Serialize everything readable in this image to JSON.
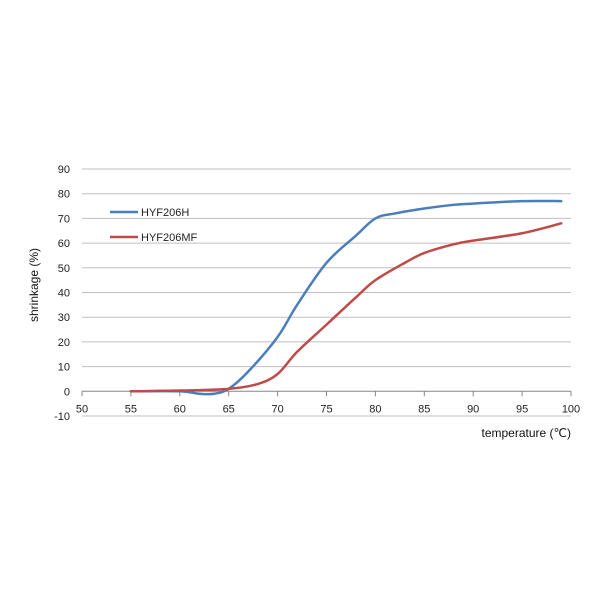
{
  "chart_data": {
    "type": "line",
    "xlabel": "temperature (℃)",
    "ylabel": "shrinkage (%)",
    "xlim": [
      50,
      100
    ],
    "ylim": [
      -10,
      90
    ],
    "x_ticks": [
      "50",
      "55",
      "60",
      "65",
      "70",
      "75",
      "80",
      "85",
      "90",
      "95",
      "100"
    ],
    "y_ticks": [
      "-10",
      "0",
      "10",
      "20",
      "30",
      "40",
      "50",
      "60",
      "70",
      "80",
      "90"
    ],
    "grid": "horizontal",
    "legend_position": "upper-left",
    "series": [
      {
        "name": "HYF206H",
        "color": "#4A7EBB",
        "x": [
          55,
          60,
          62,
          63.5,
          65,
          67,
          70,
          72,
          75,
          78,
          80,
          82,
          85,
          88,
          90,
          95,
          99
        ],
        "y": [
          0,
          0,
          -1,
          -1,
          1,
          8,
          22,
          35,
          52,
          63,
          70,
          72,
          74,
          75.5,
          76,
          77,
          77
        ]
      },
      {
        "name": "HYF206MF",
        "color": "#BE4B48",
        "x": [
          55,
          60,
          65,
          68,
          70,
          72,
          75,
          78,
          80,
          83,
          85,
          88,
          90,
          95,
          99
        ],
        "y": [
          0,
          0.3,
          1,
          3,
          7,
          16,
          27,
          38,
          45,
          52,
          56,
          59.5,
          61,
          64,
          68
        ]
      }
    ]
  }
}
